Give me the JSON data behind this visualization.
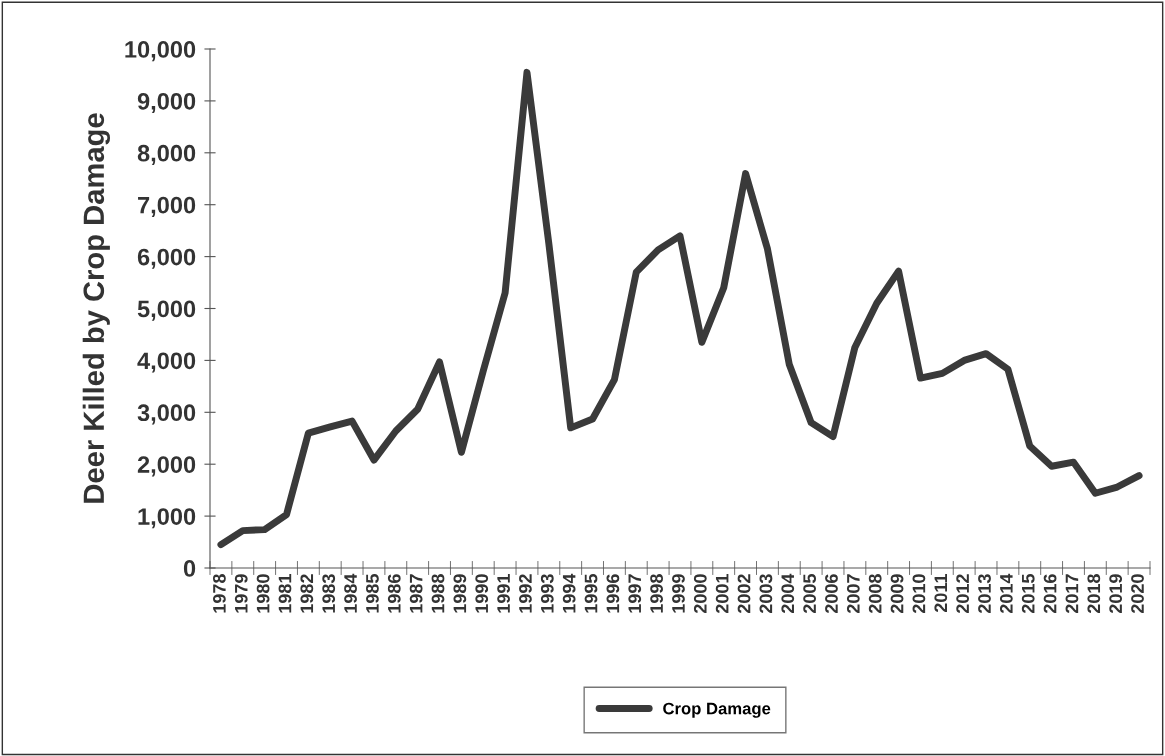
{
  "chart_data": {
    "type": "line",
    "ylabel": "Deer Killed by Crop Damage",
    "categories": [
      "1978",
      "1979",
      "1980",
      "1981",
      "1982",
      "1983",
      "1984",
      "1985",
      "1986",
      "1987",
      "1988",
      "1989",
      "1990",
      "1991",
      "1992",
      "1993",
      "1994",
      "1995",
      "1996",
      "1997",
      "1998",
      "1999",
      "2000",
      "2001",
      "2002",
      "2003",
      "2004",
      "2005",
      "2006",
      "2007",
      "2008",
      "2009",
      "2010",
      "2011",
      "2012",
      "2013",
      "2014",
      "2015",
      "2016",
      "2017",
      "2018",
      "2019",
      "2020"
    ],
    "series": [
      {
        "name": "Crop Damage",
        "color": "#3a3a3a",
        "values": [
          450,
          720,
          740,
          1030,
          2600,
          2720,
          2830,
          2080,
          2640,
          3060,
          3970,
          2230,
          3800,
          5300,
          9550,
          6250,
          2700,
          2870,
          3630,
          5700,
          6130,
          6400,
          4350,
          5400,
          7600,
          6150,
          3920,
          2800,
          2530,
          4250,
          5100,
          5720,
          3660,
          3750,
          4000,
          4130,
          3830,
          2350,
          1960,
          2040,
          1440,
          1560,
          1780
        ]
      }
    ],
    "ylim": [
      0,
      10000
    ],
    "yticks": [
      {
        "value": 0,
        "label": "0"
      },
      {
        "value": 1000,
        "label": "1,000"
      },
      {
        "value": 2000,
        "label": "2,000"
      },
      {
        "value": 3000,
        "label": "3,000"
      },
      {
        "value": 4000,
        "label": "4,000"
      },
      {
        "value": 5000,
        "label": "5,000"
      },
      {
        "value": 6000,
        "label": "6,000"
      },
      {
        "value": 7000,
        "label": "7,000"
      },
      {
        "value": 8000,
        "label": "8,000"
      },
      {
        "value": 9000,
        "label": "9,000"
      },
      {
        "value": 10000,
        "label": "10,000"
      }
    ],
    "grid": false,
    "legend": "bottom",
    "marker": "none",
    "line_style": "solid"
  }
}
